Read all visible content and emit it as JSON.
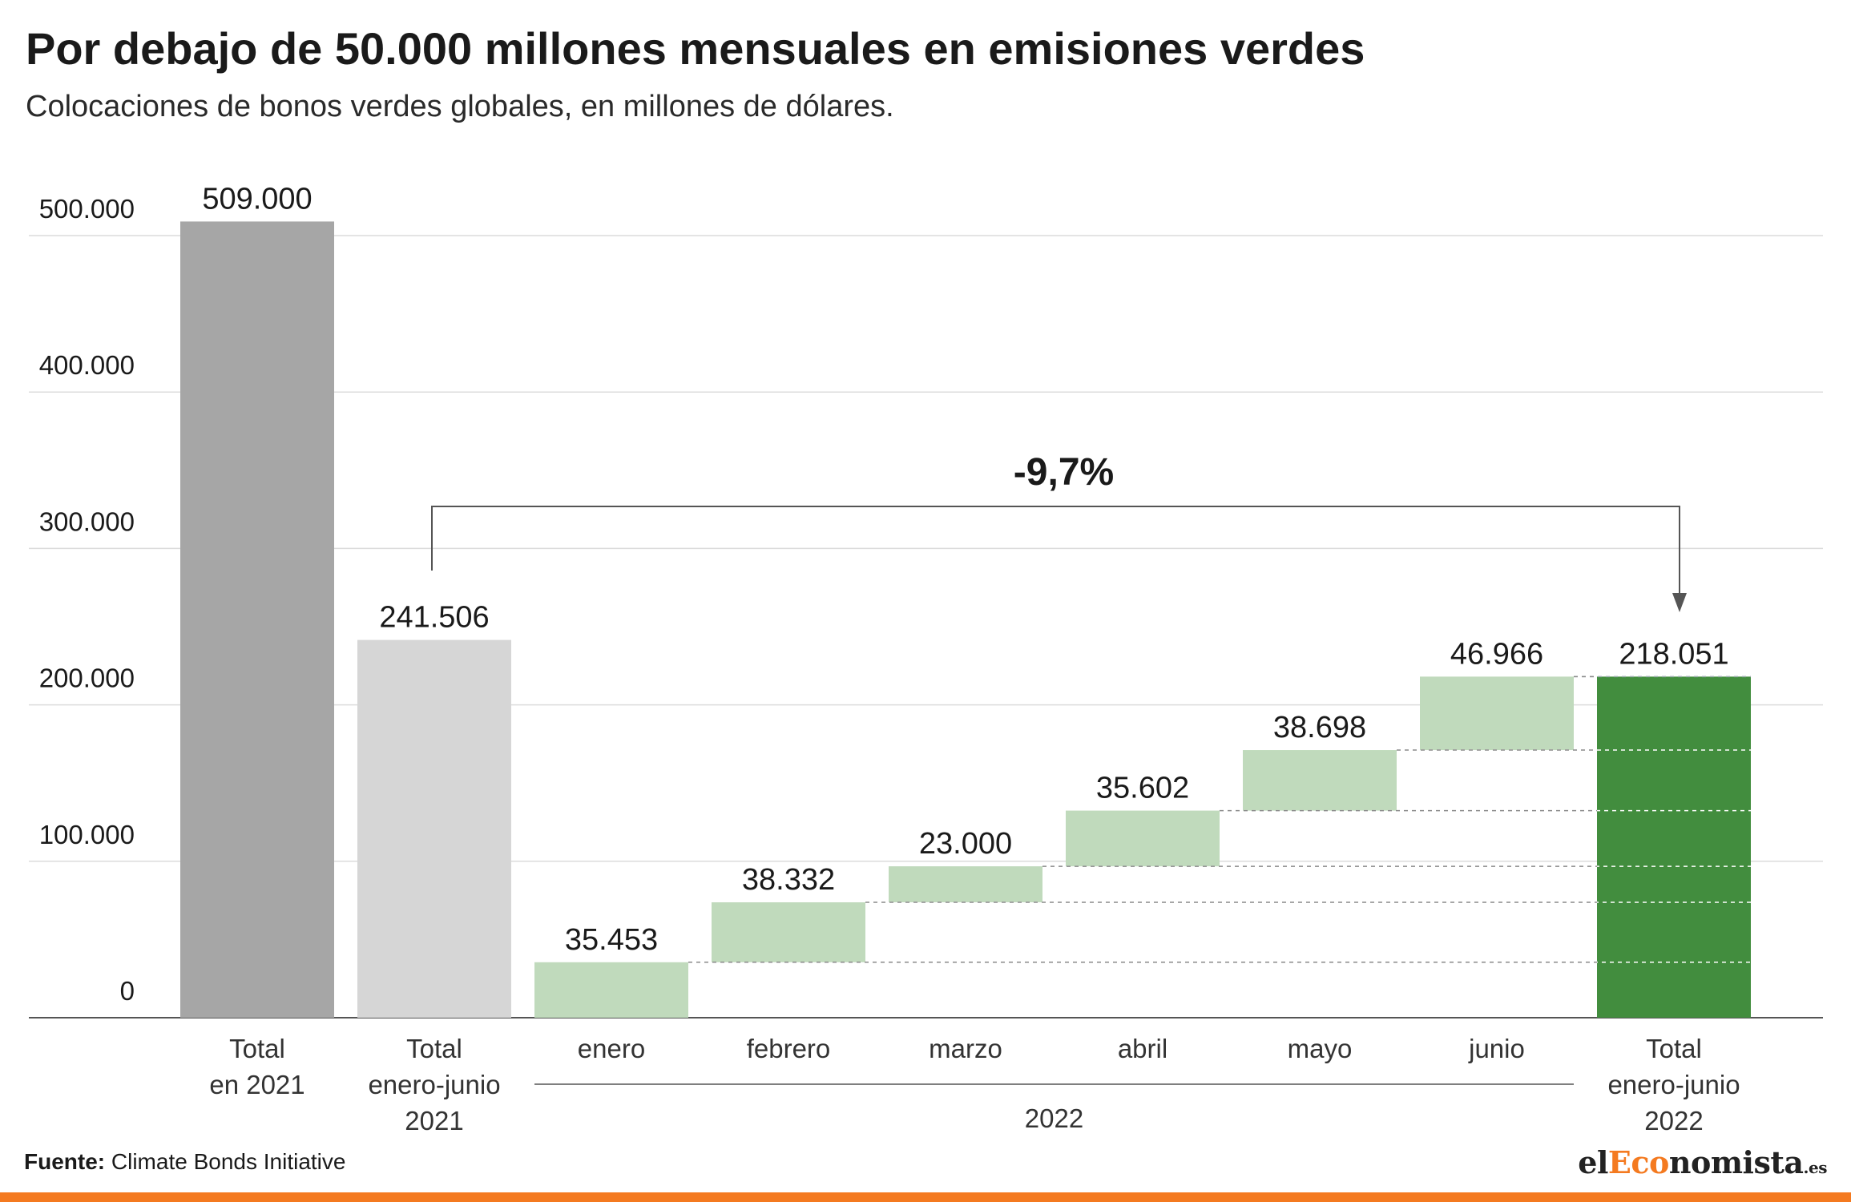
{
  "title": "Por debajo de 50.000 millones mensuales en emisiones verdes",
  "subtitle": "Colocaciones de bonos verdes globales, en millones de dólares.",
  "source": {
    "label": "Fuente:",
    "text": "Climate Bonds Initiative"
  },
  "logo": {
    "part1": "el",
    "part2": "Eco",
    "part3": "nomista",
    "part4": ".es"
  },
  "colors": {
    "total_2021": "#a6a6a6",
    "total_h1_2021": "#d6d6d6",
    "monthly": "#c0dabc",
    "total_h1_2022": "#428d3e",
    "accent": "#f47a20"
  },
  "chart_data": {
    "type": "bar",
    "subtype": "waterfall",
    "ylim": [
      0,
      550000
    ],
    "yticks": [
      {
        "value": 0,
        "label": "0"
      },
      {
        "value": 100000,
        "label": "100.000"
      },
      {
        "value": 200000,
        "label": "200.000"
      },
      {
        "value": 300000,
        "label": "300.000"
      },
      {
        "value": 400000,
        "label": "400.000"
      },
      {
        "value": 500000,
        "label": "500.000"
      }
    ],
    "grid": true,
    "bars": [
      {
        "category": [
          "Total",
          "en 2021"
        ],
        "value": 509000,
        "label": "509.000",
        "base": 0,
        "kind": "total_2021"
      },
      {
        "category": [
          "Total",
          "enero-junio",
          "2021"
        ],
        "value": 241506,
        "label": "241.506",
        "base": 0,
        "kind": "total_h1_2021"
      },
      {
        "category": [
          "enero"
        ],
        "value": 35453,
        "label": "35.453",
        "base": 0,
        "kind": "monthly"
      },
      {
        "category": [
          "febrero"
        ],
        "value": 38332,
        "label": "38.332",
        "base": 35453,
        "kind": "monthly"
      },
      {
        "category": [
          "marzo"
        ],
        "value": 23000,
        "label": "23.000",
        "base": 73785,
        "kind": "monthly"
      },
      {
        "category": [
          "abril"
        ],
        "value": 35602,
        "label": "35.602",
        "base": 96785,
        "kind": "monthly"
      },
      {
        "category": [
          "mayo"
        ],
        "value": 38698,
        "label": "38.698",
        "base": 132387,
        "kind": "monthly"
      },
      {
        "category": [
          "junio"
        ],
        "value": 46966,
        "label": "46.966",
        "base": 171085,
        "kind": "monthly"
      },
      {
        "category": [
          "Total",
          "enero-junio",
          "2022"
        ],
        "value": 218051,
        "label": "218.051",
        "base": 0,
        "kind": "total_h1_2022"
      }
    ],
    "group_label": "2022",
    "annotation": {
      "text": "-9,7%",
      "from": "Total enero-junio 2021",
      "to": "Total enero-junio 2022"
    }
  }
}
